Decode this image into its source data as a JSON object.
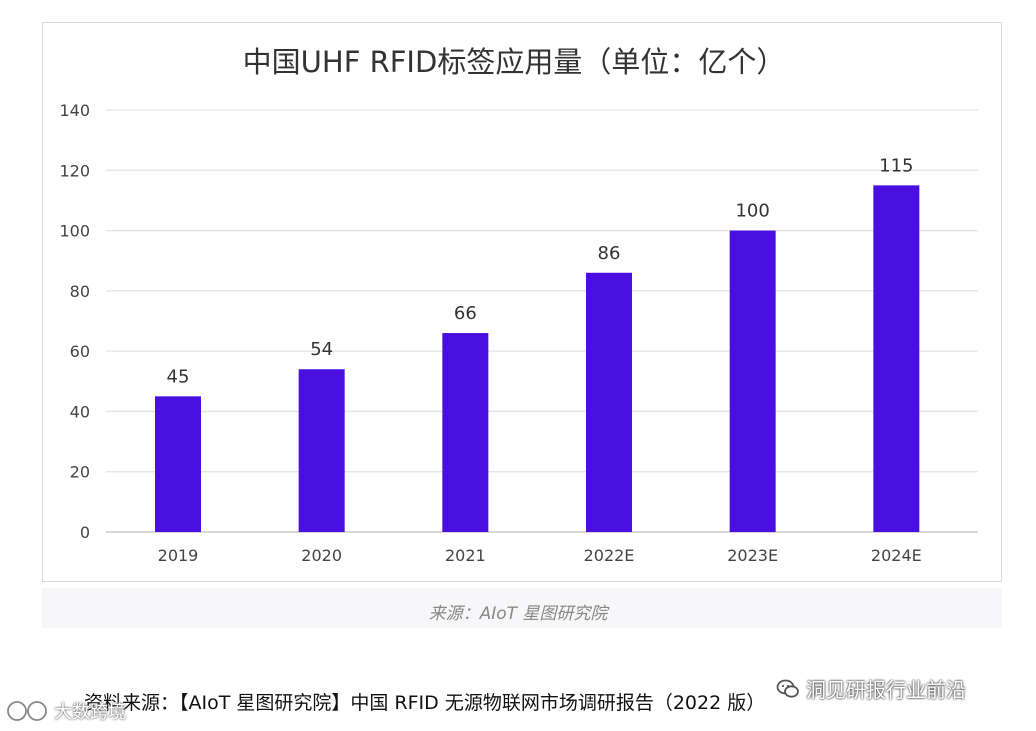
{
  "chart_data": {
    "type": "bar",
    "title": "中国UHF RFID标签应用量（单位：亿个）",
    "categories": [
      "2019",
      "2020",
      "2021",
      "2022E",
      "2023E",
      "2024E"
    ],
    "values": [
      45,
      54,
      66,
      86,
      100,
      115
    ],
    "data_labels": [
      "45",
      "54",
      "66",
      "86",
      "100",
      "115"
    ],
    "ylim": [
      0,
      140
    ],
    "yticks": [
      0,
      20,
      40,
      60,
      80,
      100,
      120,
      140
    ],
    "ytick_labels": [
      "0",
      "20",
      "40",
      "60",
      "80",
      "100",
      "120",
      "140"
    ],
    "grid": true,
    "legend": "none",
    "bar_color": "#4a0fe0",
    "source": "来源：AIoT 星图研究院"
  },
  "footer": {
    "report_source": "资料来源：【AIoT 星图研究院】中国 RFID 无源物联网市场调研报告（2022 版）",
    "brand": "洞见研报行业前沿",
    "corner_mark": "大数跨境"
  },
  "icons": {
    "brand": "wechat-icon",
    "corner": "creative-commons-icon"
  }
}
